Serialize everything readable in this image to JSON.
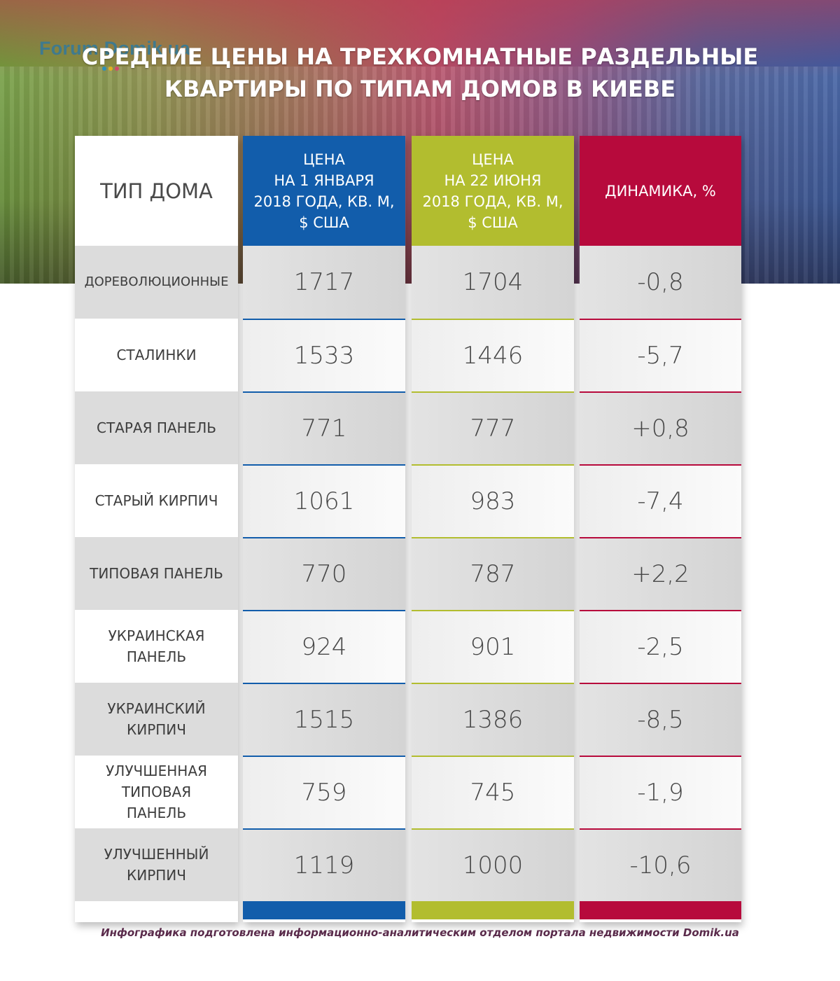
{
  "branding": {
    "logo_text": "Forum.Domik.ua"
  },
  "colors": {
    "blue": "#125dab",
    "olive": "#b2bd2f",
    "crimson": "#b70a3c",
    "row_dark": "#d9d9d9",
    "row_light": "#f2f2f2"
  },
  "chart_data": {
    "type": "table",
    "title": "СРЕДНИЕ ЦЕНЫ НА ТРЕХКОМНАТНЫЕ РАЗДЕЛЬНЫЕ КВАРТИРЫ ПО ТИПАМ ДОМОВ В КИЕВЕ",
    "title_lines": [
      "СРЕДНИЕ ЦЕНЫ НА ТРЕХКОМНАТНЫЕ РАЗДЕЛЬНЫЕ",
      "КВАРТИРЫ ПО ТИПАМ ДОМОВ В КИЕВЕ"
    ],
    "columns": [
      {
        "key": "type",
        "lines": [
          "ТИП ДОМА"
        ]
      },
      {
        "key": "price_jan",
        "lines": [
          "ЦЕНА",
          "НА 1 ЯНВАРЯ",
          "2018 ГОДА, КВ. М,",
          "$ США"
        ]
      },
      {
        "key": "price_jun",
        "lines": [
          "ЦЕНА",
          "НА 22 ИЮНЯ",
          "2018 ГОДА, КВ. М,",
          "$ США"
        ]
      },
      {
        "key": "change",
        "lines": [
          "ДИНАМИКА, %"
        ]
      }
    ],
    "rows": [
      {
        "type_lines": [
          "ДОРЕВОЛЮЦИОННЫЕ"
        ],
        "price_jan": "1717",
        "price_jun": "1704",
        "change": "-0,8"
      },
      {
        "type_lines": [
          "СТАЛИНКИ"
        ],
        "price_jan": "1533",
        "price_jun": "1446",
        "change": "-5,7"
      },
      {
        "type_lines": [
          "СТАРАЯ ПАНЕЛЬ"
        ],
        "price_jan": "771",
        "price_jun": "777",
        "change": "+0,8"
      },
      {
        "type_lines": [
          "СТАРЫЙ КИРПИЧ"
        ],
        "price_jan": "1061",
        "price_jun": "983",
        "change": "-7,4"
      },
      {
        "type_lines": [
          "ТИПОВАЯ ПАНЕЛЬ"
        ],
        "price_jan": "770",
        "price_jun": "787",
        "change": "+2,2"
      },
      {
        "type_lines": [
          "УКРАИНСКАЯ",
          "ПАНЕЛЬ"
        ],
        "price_jan": "924",
        "price_jun": "901",
        "change": "-2,5"
      },
      {
        "type_lines": [
          "УКРАИНСКИЙ",
          "КИРПИЧ"
        ],
        "price_jan": "1515",
        "price_jun": "1386",
        "change": "-8,5"
      },
      {
        "type_lines": [
          "УЛУЧШЕННАЯ",
          "ТИПОВАЯ",
          "ПАНЕЛЬ"
        ],
        "price_jan": "759",
        "price_jun": "745",
        "change": "-1,9"
      },
      {
        "type_lines": [
          "УЛУЧШЕННЫЙ",
          "КИРПИЧ"
        ],
        "price_jan": "1119",
        "price_jun": "1000",
        "change": "-10,6"
      }
    ]
  },
  "footer": {
    "text": "Инфографика подготовлена информационно-аналитическим отделом портала недвижимости Domik.ua"
  }
}
